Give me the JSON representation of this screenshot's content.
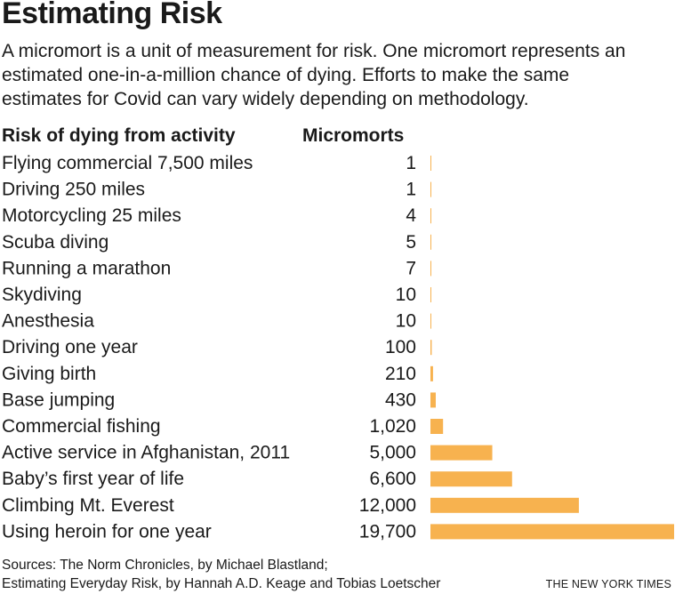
{
  "title": "Estimating Risk",
  "subtitle_lines": [
    "A micromort is a unit of measurement for risk. One micromort represents an",
    "estimated one-in-a-million chance of dying. Efforts to make the same",
    "estimates for Covid can vary widely depending on methodology."
  ],
  "columns": {
    "activity": "Risk of dying from activity",
    "value": "Micromorts"
  },
  "colors": {
    "bar": "#f7b24f",
    "text": "#1a1a1a"
  },
  "chart_data": {
    "type": "bar",
    "orientation": "horizontal",
    "categories": [
      "Flying commercial 7,500 miles",
      "Driving 250 miles",
      "Motorcycling 25 miles",
      "Scuba diving",
      "Running a marathon",
      "Skydiving",
      "Anesthesia",
      "Driving one year",
      "Giving birth",
      "Base jumping",
      "Commercial fishing",
      "Active service in Afghanistan, 2011",
      "Baby’s first year of life",
      "Climbing Mt. Everest",
      "Using heroin for one year"
    ],
    "values": [
      1,
      1,
      4,
      5,
      7,
      10,
      10,
      100,
      210,
      430,
      1020,
      5000,
      6600,
      12000,
      19700
    ],
    "value_labels": [
      "1",
      "1",
      "4",
      "5",
      "7",
      "10",
      "10",
      "100",
      "210",
      "430",
      "1,020",
      "5,000",
      "6,600",
      "12,000",
      "19,700"
    ],
    "xlim": [
      0,
      19700
    ]
  },
  "sources": [
    "Sources: The Norm Chronicles, by Michael Blastland;",
    "Estimating Everyday Risk, by Hannah A.D. Keage and Tobias Loetscher"
  ],
  "credit": "THE NEW YORK TIMES"
}
